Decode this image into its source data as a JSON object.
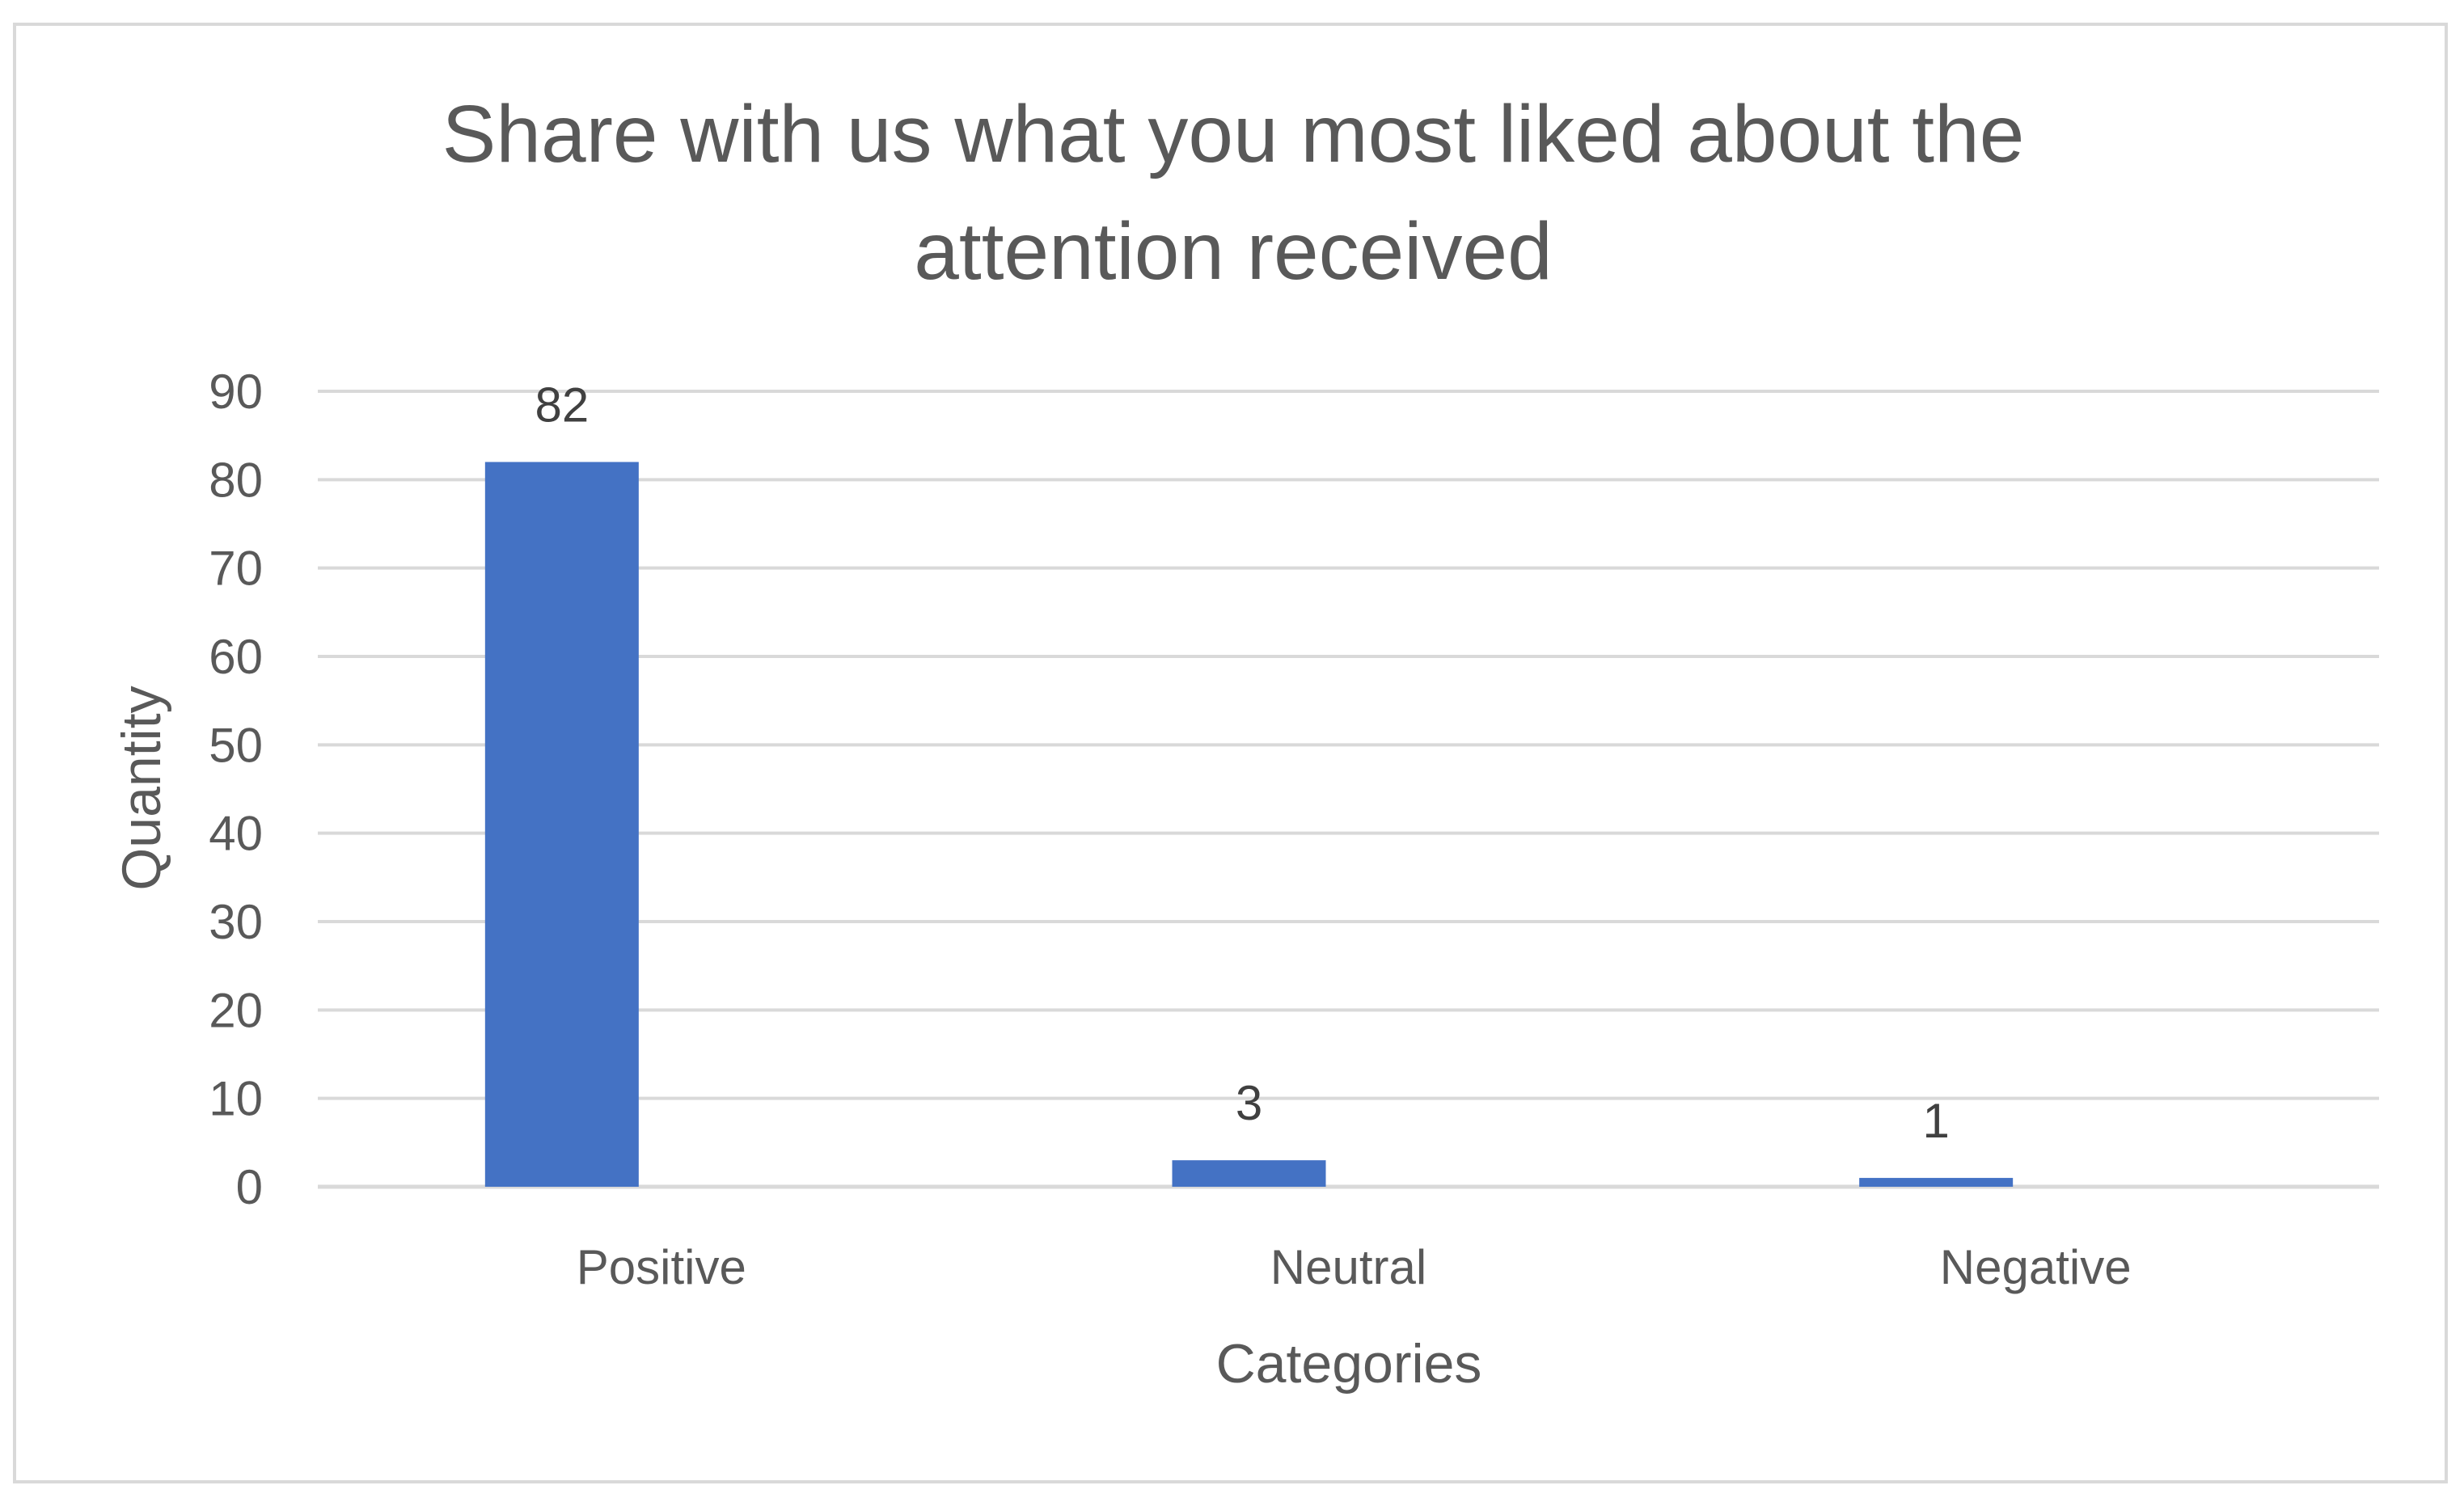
{
  "chart_data": {
    "type": "bar",
    "title_lines": [
      "Share with us what you most liked about the",
      "attention received"
    ],
    "categories": [
      "Positive",
      "Neutral",
      "Negative"
    ],
    "values": [
      82,
      3,
      1
    ],
    "data_labels": [
      "82",
      "3",
      "1"
    ],
    "xlabel": "Categories",
    "ylabel": "Quantity",
    "ylim": [
      0,
      90
    ],
    "y_ticks": [
      "0",
      "10",
      "20",
      "30",
      "40",
      "50",
      "60",
      "70",
      "80",
      "90"
    ],
    "grid": true,
    "legend": "none",
    "bar_color": "#4472C4",
    "gridline_color": "#d9d9d9"
  }
}
